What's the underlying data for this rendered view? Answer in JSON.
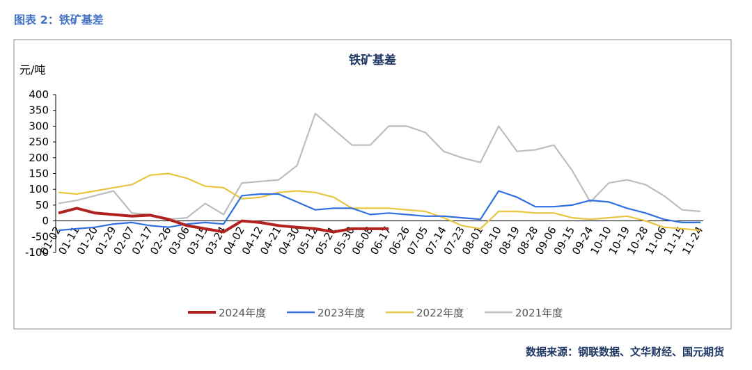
{
  "header": "图表 2：铁矿基差",
  "source": "数据来源：钢联数据、文华财经、国元期货",
  "chart_data": {
    "type": "line",
    "title": "铁矿基差",
    "y_label": "元/吨",
    "categories": [
      "01-02",
      "01-11",
      "01-20",
      "01-29",
      "02-07",
      "02-17",
      "02-26",
      "03-06",
      "03-15",
      "03-24",
      "04-02",
      "04-12",
      "04-21",
      "04-30",
      "05-12",
      "05-21",
      "05-30",
      "06-08",
      "06-17",
      "06-26",
      "07-05",
      "07-14",
      "07-23",
      "08-01",
      "08-10",
      "08-19",
      "08-28",
      "09-06",
      "09-15",
      "09-24",
      "10-10",
      "10-19",
      "10-28",
      "11-06",
      "11-15",
      "11-24"
    ],
    "series": [
      {
        "name": "2024年度",
        "color": "#b0221f",
        "values": [
          25,
          40,
          25,
          20,
          15,
          18,
          5,
          -15,
          -25,
          -35,
          0,
          -5,
          -15,
          -20,
          -25,
          -35,
          -25,
          -25,
          -25,
          null,
          null,
          null,
          null,
          null,
          null,
          null,
          null,
          null,
          null,
          null,
          null,
          null,
          null,
          null,
          null,
          null
        ]
      },
      {
        "name": "2023年度",
        "color": "#2f6fe0",
        "values": [
          -30,
          -25,
          -20,
          -10,
          -5,
          -15,
          -20,
          -10,
          -5,
          -10,
          80,
          85,
          85,
          60,
          35,
          40,
          40,
          20,
          25,
          20,
          15,
          15,
          10,
          5,
          95,
          75,
          45,
          45,
          50,
          65,
          60,
          40,
          25,
          5,
          -5,
          -5
        ]
      },
      {
        "name": "2022年度",
        "color": "#e8c440",
        "values": [
          90,
          85,
          95,
          105,
          115,
          145,
          150,
          135,
          110,
          105,
          70,
          75,
          90,
          95,
          90,
          75,
          40,
          40,
          40,
          35,
          30,
          10,
          -15,
          -25,
          30,
          30,
          25,
          25,
          10,
          5,
          10,
          15,
          0,
          -20,
          -25,
          -30
        ]
      },
      {
        "name": "2021年度",
        "color": "#bdbdbd",
        "values": [
          55,
          65,
          80,
          95,
          25,
          20,
          5,
          10,
          55,
          20,
          120,
          125,
          130,
          175,
          340,
          290,
          240,
          240,
          300,
          300,
          280,
          220,
          200,
          185,
          300,
          220,
          225,
          240,
          160,
          60,
          120,
          130,
          115,
          80,
          35,
          30
        ]
      }
    ],
    "ylim": [
      -100,
      400
    ],
    "yticks": [
      -100,
      -50,
      0,
      50,
      100,
      150,
      200,
      250,
      300,
      350,
      400
    ]
  }
}
